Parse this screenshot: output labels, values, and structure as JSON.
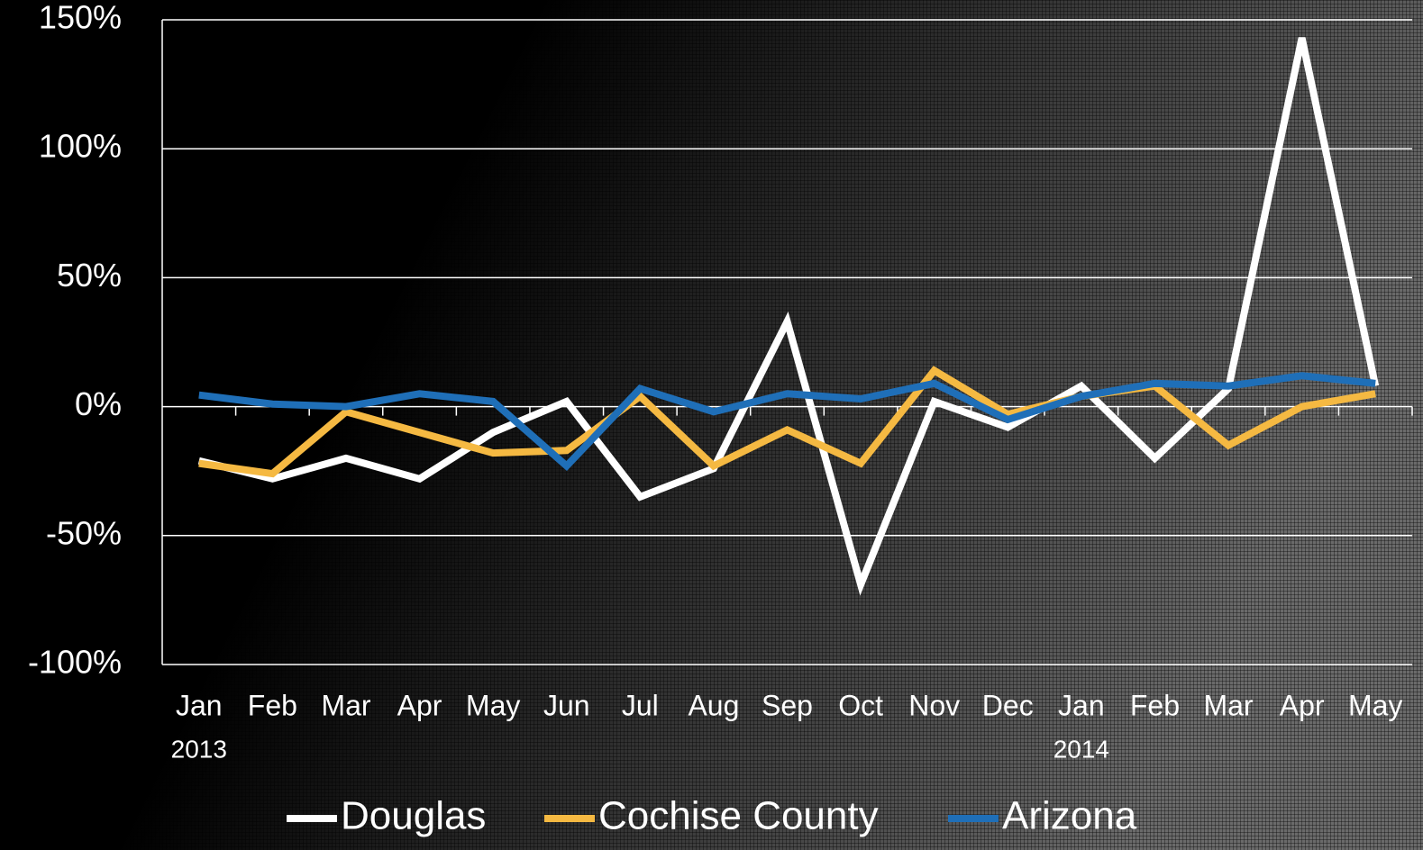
{
  "chart_data": {
    "type": "line",
    "categories": [
      "Jan",
      "Feb",
      "Mar",
      "Apr",
      "May",
      "Jun",
      "Jul",
      "Aug",
      "Sep",
      "Oct",
      "Nov",
      "Dec",
      "Jan",
      "Feb",
      "Mar",
      "Apr",
      "May"
    ],
    "category_years": [
      "2013",
      null,
      null,
      null,
      null,
      null,
      null,
      null,
      null,
      null,
      null,
      null,
      "2014",
      null,
      null,
      null,
      null
    ],
    "series": [
      {
        "name": "Douglas",
        "color": "#ffffff",
        "values": [
          -21,
          -28,
          -20,
          -28,
          -10,
          2,
          -35,
          -24,
          33,
          -69,
          2,
          -8,
          8,
          -20,
          7,
          143,
          8
        ]
      },
      {
        "name": "Cochise County",
        "color": "#f5b942",
        "values": [
          -22,
          -26,
          -2,
          -10,
          -18,
          -17,
          4,
          -23,
          -9,
          -22,
          14,
          -3,
          4,
          8,
          -15,
          0,
          5
        ]
      },
      {
        "name": "Arizona",
        "color": "#1f6fb8",
        "values": [
          4.5,
          1,
          0,
          5,
          2,
          -23,
          7,
          -2,
          5,
          3,
          9,
          -5,
          4,
          9,
          8,
          12,
          9
        ]
      }
    ],
    "ylim": [
      -100,
      150
    ],
    "yticks": [
      {
        "value": -100,
        "label": "-100%"
      },
      {
        "value": -50,
        "label": "-50%"
      },
      {
        "value": 0,
        "label": "0%"
      },
      {
        "value": 50,
        "label": "50%"
      },
      {
        "value": 100,
        "label": "100%"
      },
      {
        "value": 150,
        "label": "150%"
      }
    ],
    "grid": true,
    "legend": "bottom"
  }
}
